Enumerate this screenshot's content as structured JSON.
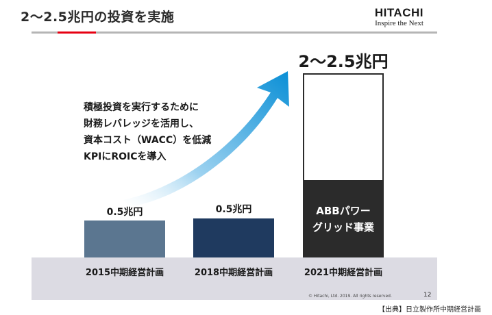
{
  "slide": {
    "title": "2～2.5兆円の投資を実施",
    "page_number": "12",
    "copyright": "© Hitachi, Ltd. 2019. All rights reserved.",
    "source": "【出典】日立製作所中期経営計画"
  },
  "logo": {
    "name": "HITACHI",
    "tagline": "Inspire the Next"
  },
  "strategy_text": [
    "積極投資を実行するために",
    "財務レバレッジを活用し、",
    "資本コスト（WACC）を低減",
    "KPIにROICを導入"
  ],
  "bars": [
    {
      "period": "2015中期経営計画",
      "value_label": "0.5兆円",
      "color": "#5b7690"
    },
    {
      "period": "2018中期経営計画",
      "value_label": "0.5兆円",
      "color": "#1f3a5f"
    },
    {
      "period": "2021中期経営計画",
      "value_label": "2～2.5兆円",
      "segment_label_line1": "ABBパワー",
      "segment_label_line2": "グリッド事業",
      "color": "#2b2b2b"
    }
  ],
  "colors": {
    "accent": "#e60012",
    "arrow_start": "#cfe8f7",
    "arrow_end": "#0a8fd6"
  }
}
